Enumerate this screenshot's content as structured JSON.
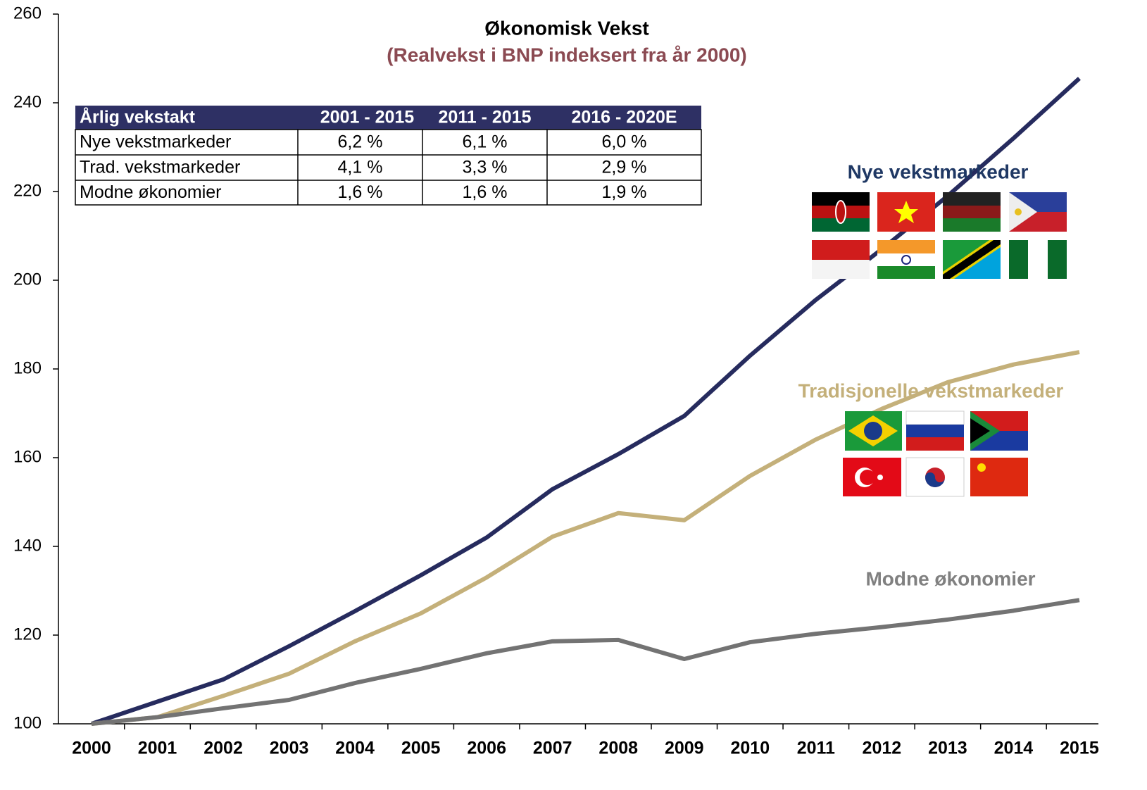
{
  "chart_data": {
    "type": "line",
    "title": "Økonomisk Vekst",
    "subtitle": "(Realvekst i BNP indeksert fra år 2000)",
    "categories": [
      "2000",
      "2001",
      "2002",
      "2003",
      "2004",
      "2005",
      "2006",
      "2007",
      "2008",
      "2009",
      "2010",
      "2011",
      "2012",
      "2013",
      "2014",
      "2015"
    ],
    "series": [
      {
        "name": "Nye vekstmarkeder",
        "color": "#262b5e",
        "values": [
          100,
          105,
          110,
          117.5,
          125.4,
          133.5,
          142,
          152.9,
          160.8,
          169.4,
          183,
          195.6,
          207,
          219,
          232,
          245.5
        ]
      },
      {
        "name": "Tradisjonelle vekstmarkeder",
        "color": "#c4b07a",
        "values": [
          100,
          101.5,
          106.3,
          111.3,
          118.6,
          124.9,
          133,
          142.2,
          147.5,
          145.9,
          155.9,
          164.1,
          171,
          177,
          181,
          183.8
        ]
      },
      {
        "name": "Modne økonomier",
        "color": "#737373",
        "values": [
          100,
          101.5,
          103.5,
          105.4,
          109.2,
          112.4,
          115.9,
          118.6,
          118.9,
          114.6,
          118.4,
          120.3,
          121.8,
          123.5,
          125.5,
          127.9
        ]
      }
    ],
    "ylim": [
      100,
      260
    ],
    "yticks": [
      100,
      120,
      140,
      160,
      180,
      200,
      220,
      240,
      260
    ],
    "grid": false,
    "table": {
      "header": [
        "Årlig vekstakt",
        "2001 - 2015",
        "2011 - 2015",
        "2016 - 2020E"
      ],
      "rows": [
        [
          "Nye vekstmarkeder",
          "6,2 %",
          "6,1 %",
          "6,0 %"
        ],
        [
          "Trad. vekstmarkeder",
          "4,1 %",
          "3,3 %",
          "2,9 %"
        ],
        [
          "Modne økonomier",
          "1,6 %",
          "1,6 %",
          "1,9 %"
        ]
      ]
    }
  }
}
